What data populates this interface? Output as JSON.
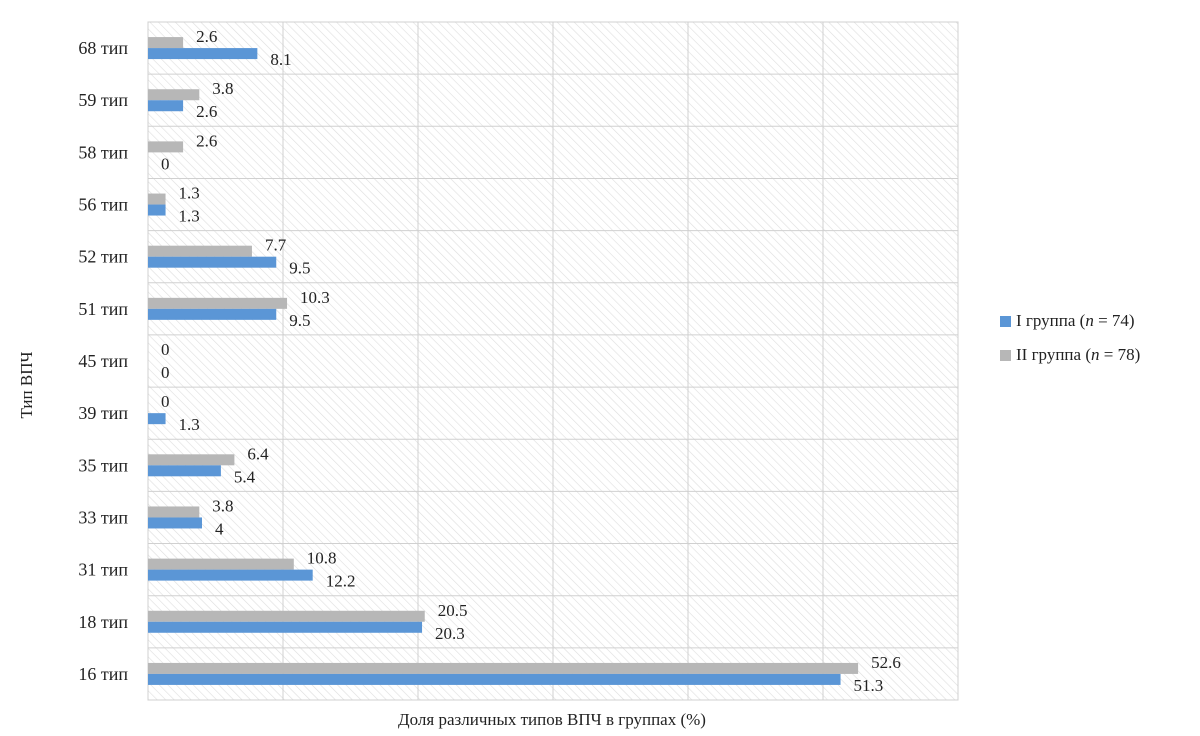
{
  "chart_data": {
    "type": "bar",
    "orientation": "horizontal",
    "title": "",
    "xlabel": "Доля различных типов ВПЧ в группах (%)",
    "ylabel": "Тип ВПЧ",
    "xlim": [
      0,
      60
    ],
    "grid": true,
    "legend_position": "right",
    "categories": [
      "68 тип",
      "59 тип",
      "58 тип",
      "56 тип",
      "52 тип",
      "51 тип",
      "45 тип",
      "39 тип",
      "35 тип",
      "33 тип",
      "31 тип",
      "18 тип",
      "16 тип"
    ],
    "series": [
      {
        "name": "II группа",
        "legend_n": "78",
        "color": "#b7b7b7",
        "values": [
          2.6,
          3.8,
          2.6,
          1.3,
          7.7,
          10.3,
          0,
          0,
          6.4,
          3.8,
          10.8,
          20.5,
          52.6
        ],
        "labels": [
          "2.6",
          "3.8",
          "2.6",
          "1.3",
          "7.7",
          "10.3",
          "0",
          "0",
          "6.4",
          "3.8",
          "10.8",
          "20.5",
          "52.6"
        ]
      },
      {
        "name": "I группа",
        "legend_n": "74",
        "color": "#5b96d6",
        "values": [
          8.1,
          2.6,
          0,
          1.3,
          9.5,
          9.5,
          0,
          1.3,
          5.4,
          4,
          12.2,
          20.3,
          51.3
        ],
        "labels": [
          "8.1",
          "2.6",
          "0",
          "1.3",
          "9.5",
          "9.5",
          "0",
          "1.3",
          "5.4",
          "4",
          "12.2",
          "20.3",
          "51.3"
        ]
      }
    ]
  }
}
